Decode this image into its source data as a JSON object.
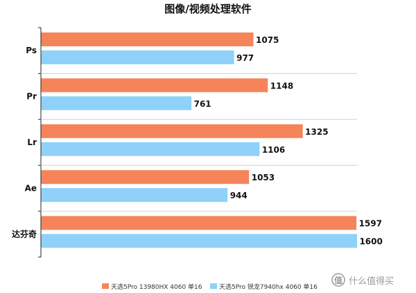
{
  "chart_data": {
    "type": "bar",
    "orientation": "horizontal",
    "title": "图像/视频处理软件",
    "categories": [
      "Ps",
      "Pr",
      "Lr",
      "Ae",
      "达芬奇"
    ],
    "series": [
      {
        "name": "天选5Pro 13980HX 4060 单16",
        "color": "#F6845A",
        "values": [
          1075,
          1148,
          1325,
          1053,
          1597
        ]
      },
      {
        "name": "天选5Pro 锐龙7940hx 4060 单16",
        "color": "#8FD1F8",
        "values": [
          977,
          761,
          1106,
          944,
          1600
        ]
      }
    ],
    "xlim": [
      0,
      1700
    ],
    "grid": false,
    "legend_position": "bottom-center"
  },
  "watermark": {
    "icon": "smzdm-value-icon",
    "text": "什么值得买"
  }
}
